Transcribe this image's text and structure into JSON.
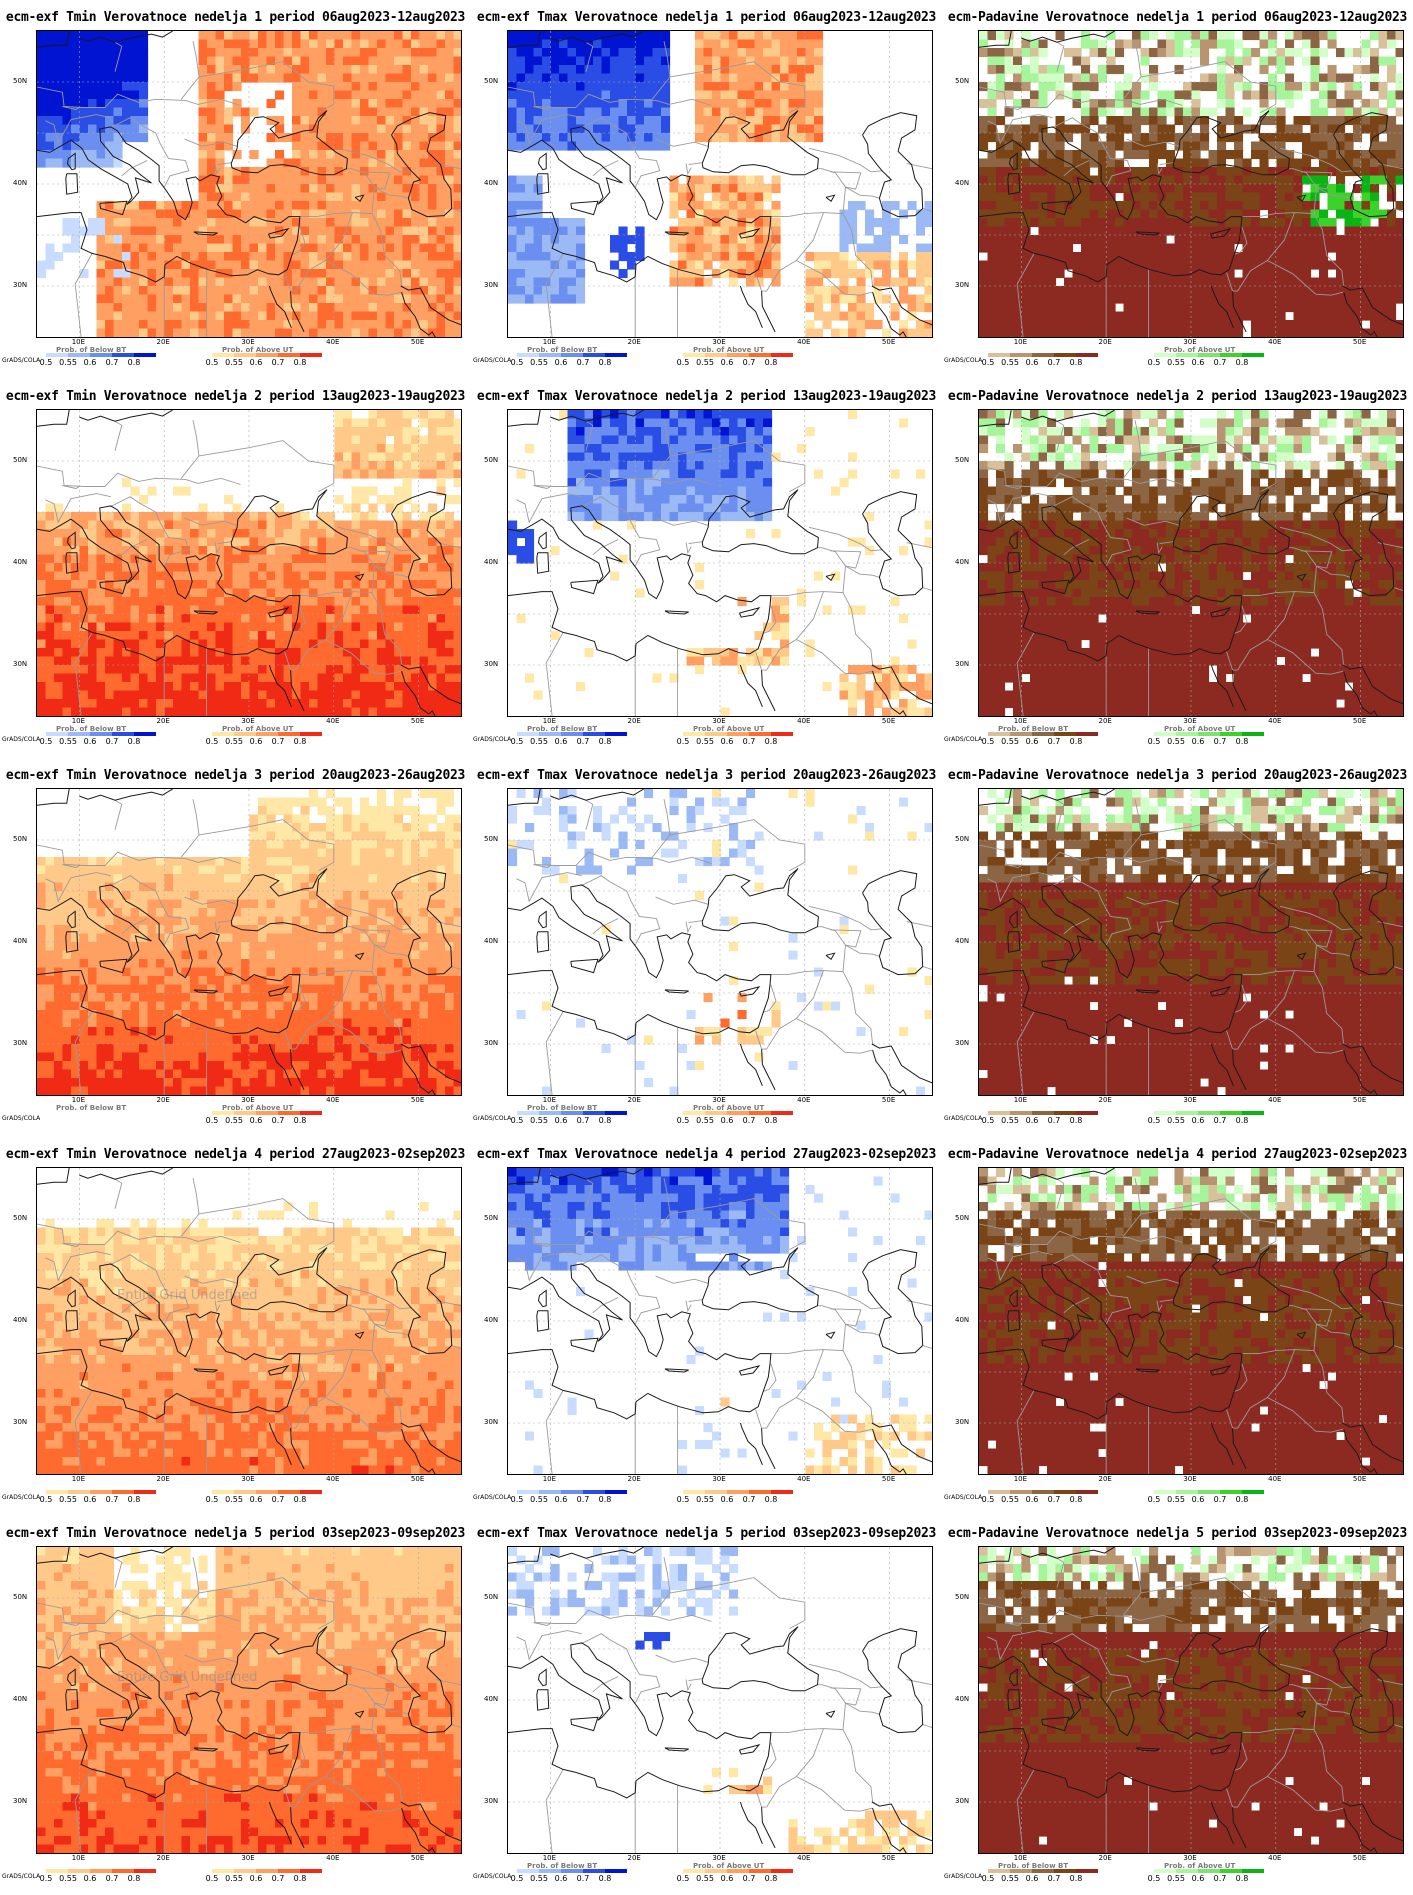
{
  "panels": [
    {
      "title": "ecm-exf Tmin Verovatnoce nedelja 1 period 06aug2023-12aug2023",
      "kind": "tmin",
      "left_label": "GrADS/COLA",
      "cb1_title": "Prob. of Below BT",
      "cb2_title": "Prob. of Above UT",
      "cb1_ticks": [
        "0.5",
        "0.55",
        "0.6",
        "0.7",
        "0.8"
      ],
      "cb2_ticks": [
        "0.5",
        "0.55",
        "0.6",
        "0.7",
        "0.8"
      ],
      "undefined": ""
    },
    {
      "title": "ecm-exf Tmax Verovatnoce nedelja 1 period 06aug2023-12aug2023",
      "kind": "tmax",
      "left_label": "GrADS/COLA",
      "cb1_title": "Prob. of Below BT",
      "cb2_title": "Prob. of Above UT",
      "cb1_ticks": [
        "0.5",
        "0.55",
        "0.6",
        "0.7",
        "0.8"
      ],
      "cb2_ticks": [
        "0.5",
        "0.55",
        "0.6",
        "0.7",
        "0.8"
      ],
      "undefined": ""
    },
    {
      "title": "ecm-Padavine Verovatnoce nedelja 1 period 06aug2023-12aug2023",
      "kind": "precip",
      "left_label": "GrADS/COLA",
      "cb1_title": "",
      "cb2_title": "Prob. of Above UT",
      "cb1_ticks": [
        "0.5",
        "0.55",
        "0.6",
        "0.7",
        "0.8"
      ],
      "cb2_ticks": [
        "0.5",
        "0.55",
        "0.6",
        "0.7",
        "0.8"
      ],
      "undefined": ""
    },
    {
      "title": "ecm-exf Tmin Verovatnoce nedelja 2 period 13aug2023-19aug2023",
      "kind": "tmin",
      "left_label": "GrADS/COLA",
      "cb1_title": "Prob. of Below BT",
      "cb2_title": "Prob. of Above UT",
      "cb1_ticks": [
        "0.5",
        "0.55",
        "0.6",
        "0.7",
        "0.8"
      ],
      "cb2_ticks": [
        "0.5",
        "0.55",
        "0.6",
        "0.7",
        "0.8"
      ],
      "undefined": ""
    },
    {
      "title": "ecm-exf Tmax Verovatnoce nedelja 2 period 13aug2023-19aug2023",
      "kind": "tmax",
      "left_label": "GrADS/COLA",
      "cb1_title": "Prob. of Below BT",
      "cb2_title": "Prob. of Above UT",
      "cb1_ticks": [
        "0.5",
        "0.55",
        "0.6",
        "0.7",
        "0.8"
      ],
      "cb2_ticks": [
        "0.5",
        "0.55",
        "0.6",
        "0.7",
        "0.8"
      ],
      "undefined": ""
    },
    {
      "title": "ecm-Padavine Verovatnoce nedelja 2 period 13aug2023-19aug2023",
      "kind": "precip",
      "left_label": "GrADS/COLA",
      "cb1_title": "Prob. of Below BT",
      "cb2_title": "Prob. of Above UT",
      "cb1_ticks": [
        "0.5",
        "0.55",
        "0.6",
        "0.7",
        "0.8"
      ],
      "cb2_ticks": [
        "0.5",
        "0.55",
        "0.6",
        "0.7",
        "0.8"
      ],
      "undefined": ""
    },
    {
      "title": "ecm-exf Tmin Verovatnoce nedelja 3 period 20aug2023-26aug2023",
      "kind": "tmin",
      "left_label": "GrADS/COLA",
      "cb1_title": "Prob. of Below BT",
      "cb2_title": "Prob. of Above UT",
      "cb1_ticks": [],
      "cb2_ticks": [
        "0.5",
        "0.55",
        "0.6",
        "0.7",
        "0.8"
      ],
      "undefined": ""
    },
    {
      "title": "ecm-exf Tmax Verovatnoce nedelja 3 period 20aug2023-26aug2023",
      "kind": "tmax",
      "left_label": "GrADS/COLA",
      "cb1_title": "Prob. of Below BT",
      "cb2_title": "Prob. of Above UT",
      "cb1_ticks": [
        "0.5",
        "0.55",
        "0.6",
        "0.7",
        "0.8"
      ],
      "cb2_ticks": [
        "0.5",
        "0.55",
        "0.6",
        "0.7",
        "0.8"
      ],
      "undefined": ""
    },
    {
      "title": "ecm-Padavine Verovatnoce nedelja 3 period 20aug2023-26aug2023",
      "kind": "precip",
      "left_label": "GrADS/COLA",
      "cb1_title": "",
      "cb2_title": "",
      "cb1_ticks": [
        "0.5",
        "0.55",
        "0.6",
        "0.7",
        "0.8"
      ],
      "cb2_ticks": [
        "0.5",
        "0.55",
        "0.6",
        "0.7",
        "0.8"
      ],
      "undefined": ""
    },
    {
      "title": "ecm-exf Tmin Verovatnoce nedelja 4 period 27aug2023-02sep2023",
      "kind": "tmin",
      "left_label": "GrADS/COLA",
      "cb1_title": "",
      "cb2_title": "",
      "cb1_ticks": [
        "0.5",
        "0.55",
        "0.6",
        "0.7",
        "0.8"
      ],
      "cb2_ticks": [
        "0.5",
        "0.55",
        "0.6",
        "0.7",
        "0.8"
      ],
      "undefined": "Entire Grid Undefined"
    },
    {
      "title": "ecm-exf Tmax Verovatnoce nedelja 4 period 27aug2023-02sep2023",
      "kind": "tmax",
      "left_label": "GrADS/COLA",
      "cb1_title": "",
      "cb2_title": "",
      "cb1_ticks": [
        "0.5",
        "0.55",
        "0.6",
        "0.7",
        "0.8"
      ],
      "cb2_ticks": [
        "0.5",
        "0.55",
        "0.6",
        "0.7",
        "0.8"
      ],
      "undefined": ""
    },
    {
      "title": "ecm-Padavine Verovatnoce nedelja 4 period 27aug2023-02sep2023",
      "kind": "precip",
      "left_label": "GrADS/COLA",
      "cb1_title": "",
      "cb2_title": "",
      "cb1_ticks": [
        "0.5",
        "0.55",
        "0.6",
        "0.7",
        "0.8"
      ],
      "cb2_ticks": [
        "0.5",
        "0.55",
        "0.6",
        "0.7",
        "0.8"
      ],
      "undefined": ""
    },
    {
      "title": "ecm-exf Tmin Verovatnoce nedelja 5 period 03sep2023-09sep2023",
      "kind": "tmin",
      "left_label": "GrADS/COLA",
      "cb1_title": "",
      "cb2_title": "",
      "cb1_ticks": [
        "0.5",
        "0.55",
        "0.6",
        "0.7",
        "0.8"
      ],
      "cb2_ticks": [
        "0.5",
        "0.55",
        "0.6",
        "0.7",
        "0.8"
      ],
      "undefined": "Entire Grid Undefined"
    },
    {
      "title": "ecm-exf Tmax Verovatnoce nedelja 5 period 03sep2023-09sep2023",
      "kind": "tmax",
      "left_label": "GrADS/COLA",
      "cb1_title": "Prob. of Below BT",
      "cb2_title": "Prob. of Above UT",
      "cb1_ticks": [
        "0.5",
        "0.55",
        "0.6",
        "0.7",
        "0.8"
      ],
      "cb2_ticks": [
        "0.5",
        "0.55",
        "0.6",
        "0.7",
        "0.8"
      ],
      "undefined": ""
    },
    {
      "title": "ecm-Padavine Verovatnoce nedelja 5 period 03sep2023-09sep2023",
      "kind": "precip",
      "left_label": "GrADS/COLA",
      "cb1_title": "Prob. of Below BT",
      "cb2_title": "Prob. of Above UT",
      "cb1_ticks": [
        "0.5",
        "0.55",
        "0.6",
        "0.7",
        "0.8"
      ],
      "cb2_ticks": [
        "0.5",
        "0.55",
        "0.6",
        "0.7",
        "0.8"
      ],
      "undefined": ""
    }
  ],
  "x_ticks": [
    "10E",
    "20E",
    "30E",
    "40E",
    "50E"
  ],
  "y_ticks": [
    "50N",
    "40N",
    "30N"
  ],
  "palettes": {
    "below_temp": [
      "#c8dcff",
      "#9ab9f5",
      "#6b8ff0",
      "#2a4de6",
      "#0014d2"
    ],
    "above_temp": [
      "#ffe7a6",
      "#ffc98a",
      "#ffa062",
      "#ff6a2e",
      "#f02a14"
    ],
    "below_precip": [
      "#d8c19a",
      "#b89470",
      "#8c6644",
      "#7a4416",
      "#8c2a22"
    ],
    "above_precip": [
      "#d2ffc8",
      "#a6f59a",
      "#7ce46e",
      "#3cd22a",
      "#0ab414"
    ]
  }
}
